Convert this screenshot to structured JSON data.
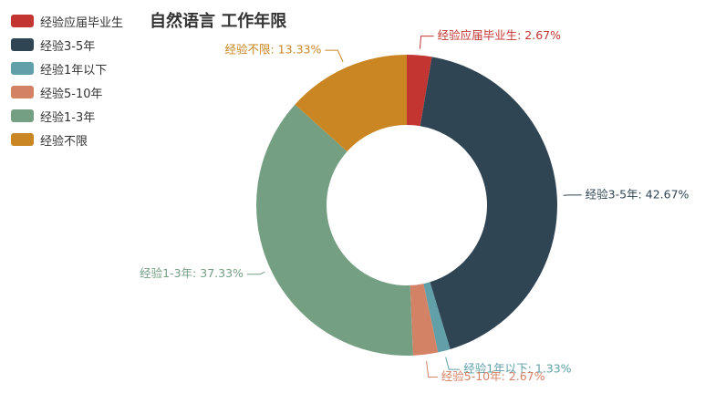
{
  "title": "自然语言 工作年限",
  "chart_data": {
    "type": "pie",
    "title": "自然语言 工作年限",
    "donut": true,
    "legend_position": "top-left",
    "categories": [
      "经验应届毕业生",
      "经验3-5年",
      "经验1年以下",
      "经验5-10年",
      "经验1-3年",
      "经验不限"
    ],
    "values": [
      2.67,
      42.67,
      1.33,
      2.67,
      37.33,
      13.33
    ],
    "labels": [
      "经验应届毕业生: 2.67%",
      "经验3-5年: 42.67%",
      "经验1年以下: 1.33%",
      "经验5-10年: 2.67%",
      "经验1-3年: 37.33%",
      "经验不限: 13.33%"
    ],
    "colors": [
      "#c23531",
      "#2f4554",
      "#61a0a8",
      "#d48265",
      "#749f83",
      "#ca8622"
    ]
  }
}
